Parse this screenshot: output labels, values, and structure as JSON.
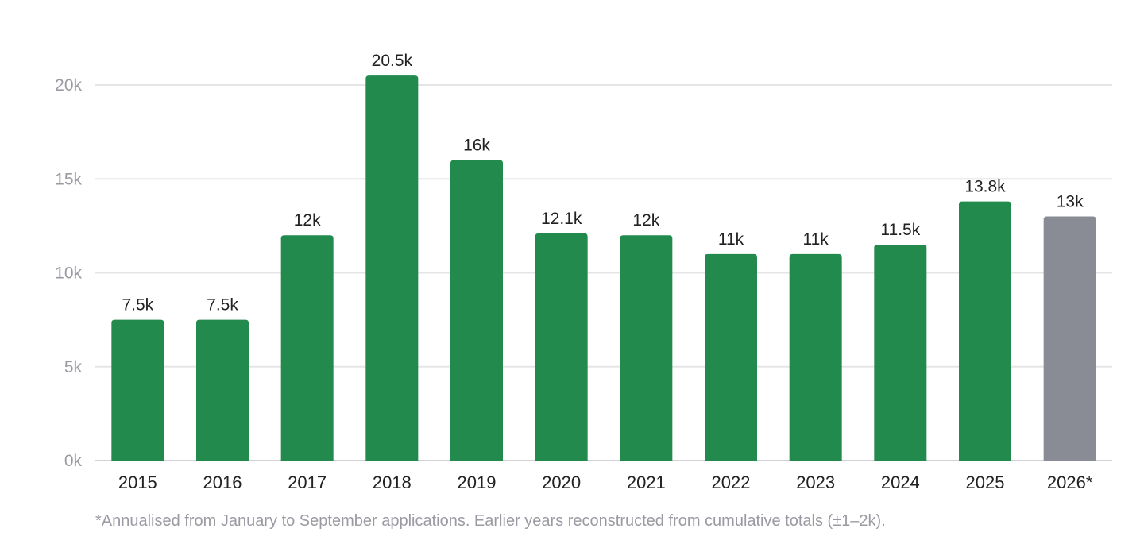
{
  "chart_data": {
    "type": "bar",
    "categories": [
      "2015",
      "2016",
      "2017",
      "2018",
      "2019",
      "2020",
      "2021",
      "2022",
      "2023",
      "2024",
      "2025",
      "2026*"
    ],
    "values": [
      7500,
      7500,
      12000,
      20500,
      16000,
      12100,
      12000,
      11000,
      11000,
      11500,
      13800,
      13000
    ],
    "data_labels": [
      "7.5k",
      "7.5k",
      "12k",
      "20.5k",
      "16k",
      "12.1k",
      "12k",
      "11k",
      "11k",
      "11.5k",
      "13.8k",
      "13k"
    ],
    "projected": [
      false,
      false,
      false,
      false,
      false,
      false,
      false,
      false,
      false,
      false,
      false,
      true
    ],
    "yticks": [
      0,
      5000,
      10000,
      15000,
      20000
    ],
    "ytick_labels": [
      "0k",
      "5k",
      "10k",
      "15k",
      "20k"
    ],
    "ylim": [
      0,
      20000
    ],
    "grid": true,
    "legend": "none",
    "title": "",
    "xlabel": "",
    "ylabel": ""
  },
  "colors": {
    "actual_bar": "#218a4c",
    "projected_bar": "#898c94",
    "gridline": "#e5e5e8",
    "baseline": "#d2d2d6",
    "tick_label": "#9a9aa2",
    "category_label": "#222222",
    "data_label": "#222222"
  },
  "footnote": "*Annualised from January to September applications. Earlier years reconstructed from cumulative totals (±1–2k)."
}
